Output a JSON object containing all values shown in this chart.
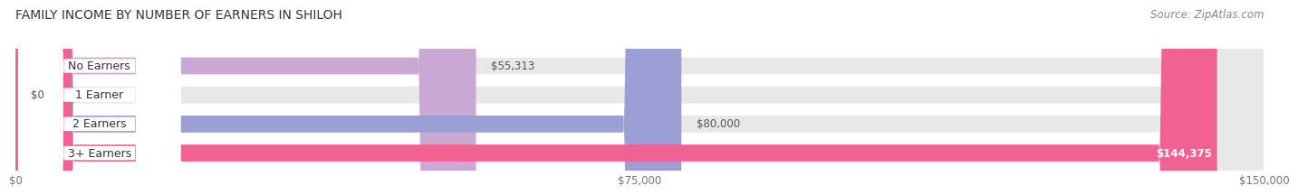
{
  "title": "FAMILY INCOME BY NUMBER OF EARNERS IN SHILOH",
  "source": "Source: ZipAtlas.com",
  "categories": [
    "No Earners",
    "1 Earner",
    "2 Earners",
    "3+ Earners"
  ],
  "values": [
    55313,
    0,
    80000,
    144375
  ],
  "value_labels": [
    "$55,313",
    "$0",
    "$80,000",
    "$144,375"
  ],
  "bar_colors": [
    "#c9a8d4",
    "#5ecfce",
    "#9b9fd4",
    "#f06292"
  ],
  "bar_bg_color": "#e8e8e8",
  "xmax": 150000,
  "xtick_labels": [
    "$0",
    "$75,000",
    "$150,000"
  ],
  "fig_bg_color": "#ffffff",
  "title_fontsize": 10,
  "source_fontsize": 8.5,
  "bar_height": 0.58,
  "label_fontsize": 9,
  "value_fontsize": 8.5
}
